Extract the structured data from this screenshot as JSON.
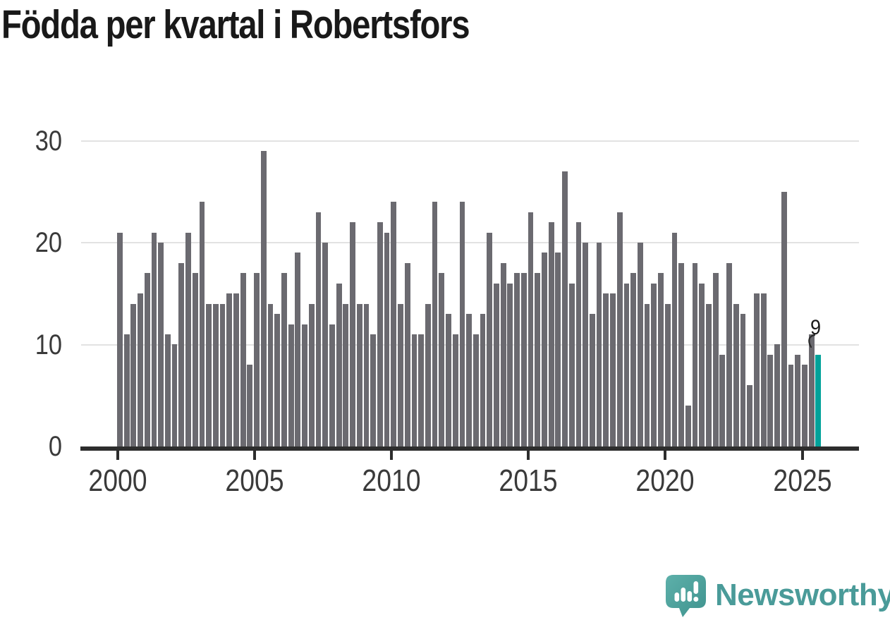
{
  "title": "Födda per kvartal i Robertsfors",
  "annotation": {
    "label": "9",
    "points_to": "latest-bar"
  },
  "branding": {
    "name": "Newsworthy"
  },
  "colors": {
    "bar": "#6b6a70",
    "highlight_bar": "#00a29a",
    "title_text": "#191919",
    "axis_text": "#3a3a3a",
    "gridline": "#e2e2e2",
    "axis_line": "#2d2d2d",
    "logo_teal": "#4a9b99",
    "logo_bubble_light": "#58aca7",
    "logo_bubble_dark": "#449692"
  },
  "chart_data": {
    "type": "bar",
    "title": "Födda per kvartal i Robertsfors",
    "x_unit": "quarter",
    "x_start": "2000-Q1",
    "x_end": "2025-Q3",
    "values": [
      21,
      11,
      14,
      15,
      17,
      21,
      20,
      11,
      10,
      18,
      21,
      17,
      24,
      14,
      14,
      14,
      15,
      15,
      17,
      8,
      17,
      29,
      14,
      13,
      17,
      12,
      19,
      12,
      14,
      23,
      20,
      12,
      16,
      14,
      22,
      14,
      14,
      11,
      22,
      21,
      24,
      14,
      18,
      11,
      11,
      14,
      24,
      17,
      13,
      11,
      24,
      13,
      11,
      13,
      21,
      16,
      18,
      16,
      17,
      17,
      23,
      17,
      19,
      22,
      19,
      27,
      16,
      22,
      20,
      13,
      20,
      15,
      15,
      23,
      16,
      17,
      20,
      14,
      16,
      17,
      14,
      21,
      18,
      4,
      18,
      16,
      14,
      17,
      9,
      18,
      14,
      13,
      6,
      15,
      15,
      9,
      10,
      25,
      8,
      9,
      8,
      11,
      9
    ],
    "highlight_index": 102,
    "highlight_value": 9,
    "x_tick_labels": [
      "2000",
      "2005",
      "2010",
      "2015",
      "2020",
      "2025"
    ],
    "quarters_per_tick": 20,
    "y_ticks": [
      0,
      10,
      20,
      30
    ],
    "ylim": [
      0,
      30
    ],
    "grid": "horizontal",
    "legend": "none"
  }
}
